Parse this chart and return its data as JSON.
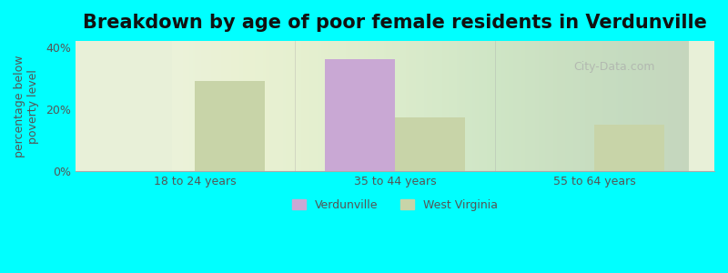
{
  "title": "Breakdown by age of poor female residents in Verdunville",
  "ylabel": "percentage below\npoverty level",
  "categories": [
    "18 to 24 years",
    "35 to 44 years",
    "55 to 64 years"
  ],
  "verdunville_values": [
    null,
    36.0,
    null
  ],
  "west_virginia_values": [
    29.0,
    17.5,
    15.0
  ],
  "verdunville_color": "#c9a8d4",
  "west_virginia_color": "#c8d4a8",
  "bar_width": 0.35,
  "ylim": [
    0,
    42
  ],
  "yticks": [
    0,
    20,
    40
  ],
  "ytick_labels": [
    "0%",
    "20%",
    "40%"
  ],
  "background_color": "#00ffff",
  "plot_bg_color_left": "#e8f0d8",
  "plot_bg_color_right": "#f8faf0",
  "title_fontsize": 15,
  "axis_label_fontsize": 9,
  "tick_fontsize": 9,
  "legend_fontsize": 9,
  "watermark": "City-Data.com"
}
